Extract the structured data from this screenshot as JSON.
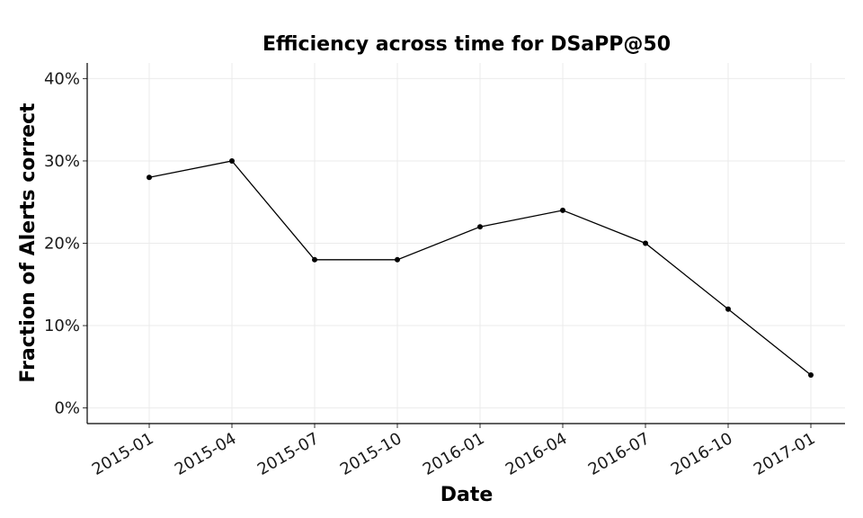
{
  "chart_data": {
    "type": "line",
    "title": "Efficiency across time for DSaPP@50",
    "xlabel": "Date",
    "ylabel": "Fraction of Alerts correct",
    "x": [
      "2015-01",
      "2015-04",
      "2015-07",
      "2015-10",
      "2016-01",
      "2016-04",
      "2016-07",
      "2016-10",
      "2017-01"
    ],
    "x_tick_labels": [
      "2015-01",
      "2015-04",
      "2015-07",
      "2015-10",
      "2016-01",
      "2016-04",
      "2016-07",
      "2016-10",
      "2017-01"
    ],
    "series": [
      {
        "values": [
          28,
          30,
          18,
          18,
          22,
          24,
          20,
          12,
          4
        ],
        "color": "#000000"
      }
    ],
    "y_unit": "%",
    "y_ticks": [
      0,
      10,
      20,
      30,
      40
    ],
    "y_tick_labels": [
      "0%",
      "10%",
      "20%",
      "30%",
      "40%"
    ],
    "ylim": [
      -1.9,
      41.9
    ],
    "grid": true,
    "legend": "none"
  }
}
